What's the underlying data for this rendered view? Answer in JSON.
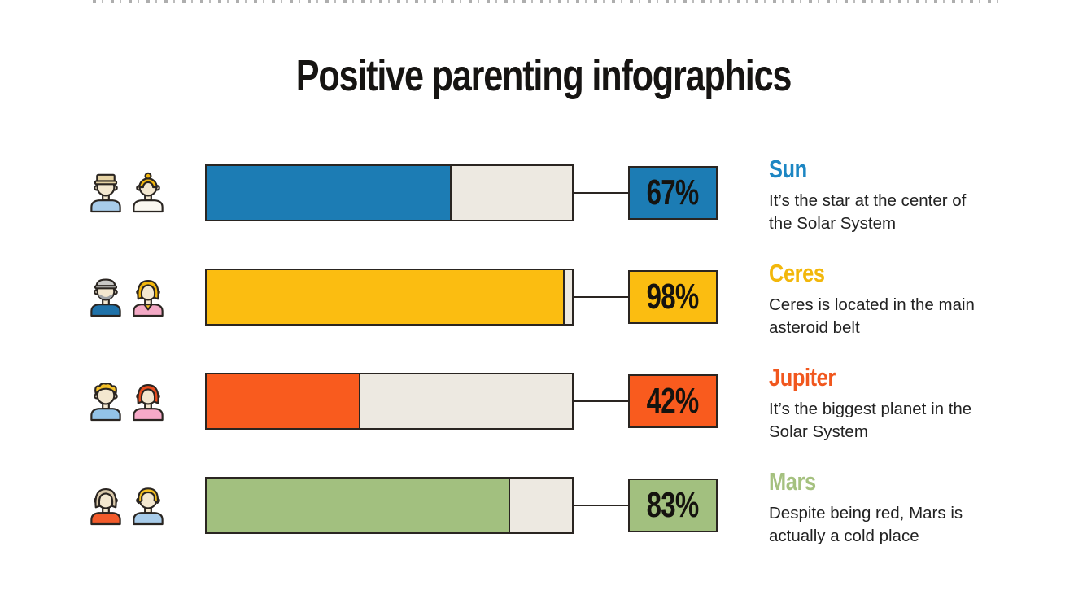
{
  "title": "Positive parenting infographics",
  "colors": {
    "background": "#FFFFFF",
    "track": "#EDE9E1",
    "outline": "#2A2521",
    "text": "#222222"
  },
  "chart_data": {
    "type": "bar",
    "orientation": "horizontal",
    "title": "Positive parenting infographics",
    "categories": [
      "Sun",
      "Ceres",
      "Jupiter",
      "Mars"
    ],
    "values": [
      67,
      98,
      42,
      83
    ],
    "value_labels": [
      "67%",
      "98%",
      "42%",
      "83%"
    ],
    "unit": "%",
    "xlim": [
      0,
      100
    ],
    "grid": false,
    "legend_position": "none",
    "bar_colors": [
      "#1C7CB4",
      "#FBBD11",
      "#F95B1E",
      "#A2C07F"
    ],
    "annotations": [
      "It’s the star at the center of the Solar System",
      "Ceres is located in the main asteroid belt",
      "It’s the biggest planet in the Solar System",
      "Despite being red, Mars is actually a cold place"
    ]
  },
  "rows": [
    {
      "name": "Sun",
      "value": 67,
      "percent_label": "67%",
      "description": "It’s the star at the center of the Solar System",
      "color": "#1C7CB4",
      "heading_color": "#1C86C3",
      "icons": [
        {
          "name": "groom-icon",
          "variant": "hat",
          "hair": "#E6D3A4",
          "shirt": "#A8CCEA"
        },
        {
          "name": "bride-icon",
          "variant": "bun",
          "hair": "#F3B70C",
          "shirt": "#FBF8F1"
        }
      ]
    },
    {
      "name": "Ceres",
      "value": 98,
      "percent_label": "98%",
      "description": "Ceres is located in the main asteroid belt",
      "color": "#FBBD11",
      "heading_color": "#F2B70B",
      "icons": [
        {
          "name": "grandfather-icon",
          "variant": "cap",
          "hair": "#C8C8C6",
          "beard": "#9EA2A6",
          "shirt": "#1F72A9"
        },
        {
          "name": "grandmother-icon",
          "variant": "bob",
          "hair": "#F3B70C",
          "shirt": "#F3A9C5",
          "accent": "#F5C122"
        }
      ]
    },
    {
      "name": "Jupiter",
      "value": 42,
      "percent_label": "42%",
      "description": "It’s the biggest planet in the Solar System",
      "color": "#F95B1E",
      "heading_color": "#F1571E",
      "icons": [
        {
          "name": "young-man-icon",
          "variant": "curly",
          "hair": "#F5C12B",
          "shirt": "#93C3E8"
        },
        {
          "name": "young-woman-icon",
          "variant": "bob",
          "hair": "#E94C1D",
          "shirt": "#F6A9C8"
        }
      ]
    },
    {
      "name": "Mars",
      "value": 83,
      "percent_label": "83%",
      "description": "Despite being red, Mars is actually a cold place",
      "color": "#A2C07F",
      "heading_color": "#A5C17F",
      "icons": [
        {
          "name": "mother-icon",
          "variant": "bob",
          "hair": "#D9C8A9",
          "shirt": "#F25B2B"
        },
        {
          "name": "woman-icon",
          "variant": "straight",
          "hair": "#F5C122",
          "shirt": "#A8CCEA"
        }
      ]
    }
  ]
}
